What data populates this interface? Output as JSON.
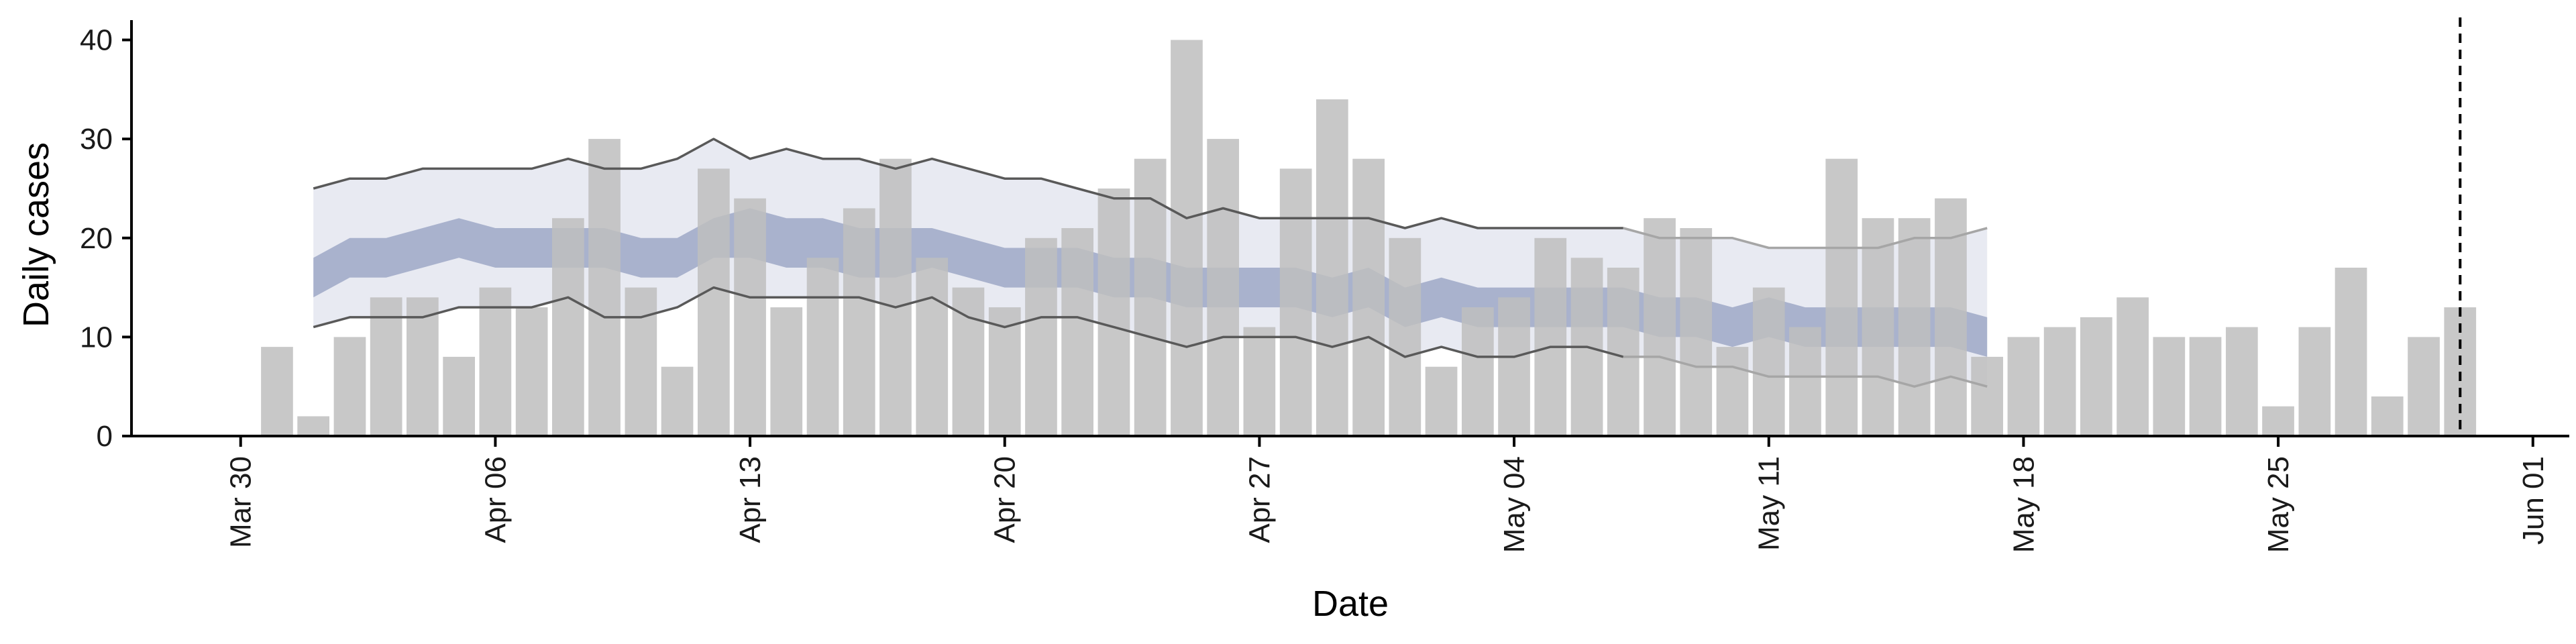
{
  "chart_data": {
    "type": "bar",
    "xlabel": "Date",
    "ylabel": "Daily cases",
    "ylim": [
      0,
      42
    ],
    "yticks": [
      0,
      10,
      20,
      30,
      40
    ],
    "xlim": [
      "2020-03-27",
      "2020-06-02"
    ],
    "xticks": [
      {
        "date": "2020-03-30",
        "label": "Mar 30"
      },
      {
        "date": "2020-04-06",
        "label": "Apr 06"
      },
      {
        "date": "2020-04-13",
        "label": "Apr 13"
      },
      {
        "date": "2020-04-20",
        "label": "Apr 20"
      },
      {
        "date": "2020-04-27",
        "label": "Apr 27"
      },
      {
        "date": "2020-05-04",
        "label": "May 04"
      },
      {
        "date": "2020-05-11",
        "label": "May 11"
      },
      {
        "date": "2020-05-18",
        "label": "May 18"
      },
      {
        "date": "2020-05-25",
        "label": "May 25"
      },
      {
        "date": "2020-06-01",
        "label": "Jun 01"
      }
    ],
    "reference_line_date": "2020-05-30",
    "bars": {
      "start_date": "2020-03-31",
      "color": "#bebebe",
      "values": [
        9,
        2,
        10,
        14,
        14,
        8,
        15,
        13,
        22,
        30,
        15,
        7,
        27,
        24,
        13,
        18,
        23,
        28,
        18,
        15,
        13,
        20,
        21,
        25,
        28,
        40,
        30,
        11,
        27,
        34,
        28,
        20,
        7,
        13,
        14,
        20,
        18,
        17,
        22,
        21,
        9,
        15,
        11,
        28,
        22,
        22,
        24,
        8,
        10,
        11,
        12,
        14,
        10,
        10,
        11,
        3,
        11,
        17,
        4,
        10,
        13
      ]
    },
    "bands": {
      "start_date": "2020-04-01",
      "outer_color": "#e8eaf2",
      "inner_color": "#a9b2cd",
      "outer_lower": [
        11,
        12,
        12,
        12,
        13,
        13,
        13,
        14,
        12,
        12,
        13,
        15,
        14,
        14,
        14,
        14,
        13,
        14,
        12,
        11,
        12,
        12,
        11,
        10,
        9,
        10,
        10,
        10,
        9,
        10,
        8,
        9,
        8,
        8,
        9,
        9,
        8,
        8,
        7,
        7,
        6,
        6,
        6,
        6,
        5,
        6,
        5
      ],
      "inner_lower": [
        14,
        16,
        16,
        17,
        18,
        17,
        17,
        17,
        17,
        16,
        16,
        18,
        18,
        17,
        17,
        16,
        16,
        17,
        16,
        15,
        15,
        15,
        14,
        14,
        13,
        13,
        13,
        13,
        12,
        13,
        11,
        12,
        11,
        11,
        11,
        11,
        11,
        10,
        10,
        9,
        10,
        9,
        9,
        9,
        9,
        9,
        8
      ],
      "inner_upper": [
        18,
        20,
        20,
        21,
        22,
        21,
        21,
        21,
        21,
        20,
        20,
        22,
        23,
        22,
        22,
        21,
        21,
        21,
        20,
        19,
        19,
        19,
        18,
        18,
        17,
        17,
        17,
        17,
        16,
        17,
        15,
        16,
        15,
        15,
        15,
        15,
        15,
        14,
        14,
        13,
        14,
        13,
        13,
        13,
        13,
        13,
        12
      ],
      "outer_upper": [
        25,
        26,
        26,
        27,
        27,
        27,
        27,
        28,
        27,
        27,
        28,
        30,
        28,
        29,
        28,
        28,
        27,
        28,
        27,
        26,
        26,
        25,
        24,
        24,
        22,
        23,
        22,
        22,
        22,
        22,
        21,
        22,
        21,
        21,
        21,
        21,
        21,
        20,
        20,
        20,
        19,
        19,
        19,
        19,
        20,
        20,
        21
      ],
      "solid_segments": 36
    }
  }
}
